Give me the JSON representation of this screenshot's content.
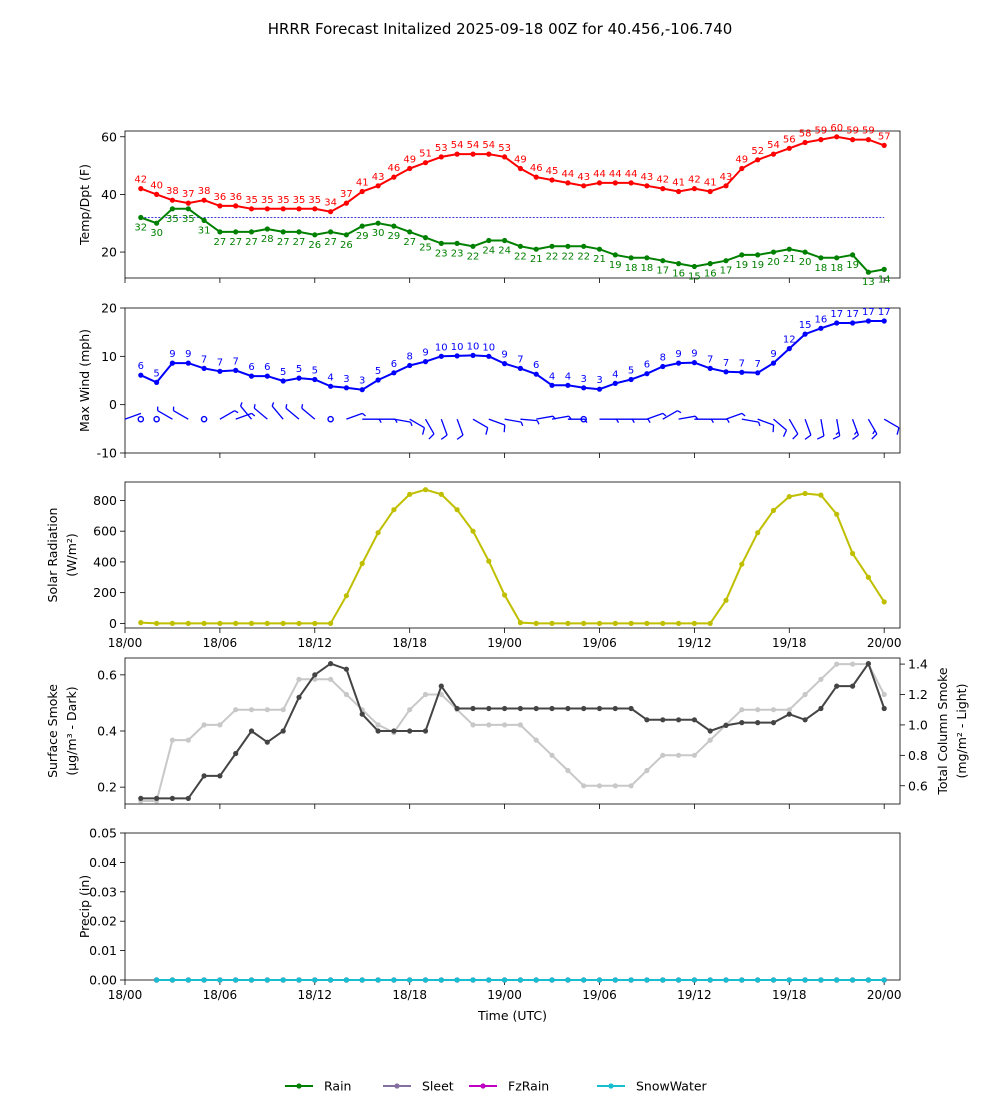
{
  "title": "HRRR Forecast Initalized 2025-09-18 00Z for 40.456,-106.740",
  "colors": {
    "temp": "#ff0000",
    "dewpoint": "#008000",
    "freezing_line": "#0000cc",
    "wind": "#0000ff",
    "solar": "#bfbf00",
    "surface_smoke": "#444444",
    "column_smoke": "#c8c8c8",
    "rain": "#008000",
    "sleet": "#8470a0",
    "fzrain": "#c000c0",
    "snowwater": "#17becf"
  },
  "x_axis": {
    "label": "Time (UTC)",
    "range_hours": [
      0,
      49
    ],
    "tick_hours": [
      0,
      6,
      12,
      18,
      24,
      30,
      36,
      42,
      48
    ],
    "tick_labels": [
      "18/00",
      "18/06",
      "18/12",
      "18/18",
      "19/00",
      "19/06",
      "19/12",
      "19/18",
      "20/00"
    ]
  },
  "chart_data": [
    {
      "type": "line",
      "ylabel": "Temp/Dpt (F)",
      "ylim": [
        11,
        62
      ],
      "yticks": [
        20,
        40,
        60
      ],
      "x_hours": [
        1,
        2,
        3,
        4,
        5,
        6,
        7,
        8,
        9,
        10,
        11,
        12,
        13,
        14,
        15,
        16,
        17,
        18,
        19,
        20,
        21,
        22,
        23,
        24,
        25,
        26,
        27,
        28,
        29,
        30,
        31,
        32,
        33,
        34,
        35,
        36,
        37,
        38,
        39,
        40,
        41,
        42,
        43,
        44,
        45,
        46,
        47,
        48
      ],
      "series": [
        {
          "key": "temp",
          "color_key": "temp",
          "label_dy": -6,
          "values": [
            42,
            40,
            38,
            37,
            38,
            36,
            36,
            35,
            35,
            35,
            35,
            35,
            34,
            37,
            41,
            43,
            46,
            49,
            51,
            53,
            54,
            54,
            54,
            53,
            49,
            46,
            45,
            44,
            43,
            44,
            44,
            44,
            43,
            42,
            41,
            42,
            41,
            43,
            49,
            52,
            54,
            56,
            58,
            59,
            60,
            59,
            59,
            57
          ]
        },
        {
          "key": "dewpoint",
          "color_key": "dewpoint",
          "label_dy": 13,
          "values": [
            32,
            30,
            35,
            35,
            31,
            27,
            27,
            27,
            28,
            27,
            27,
            26,
            27,
            26,
            29,
            30,
            29,
            27,
            25,
            23,
            23,
            22,
            24,
            24,
            22,
            21,
            22,
            22,
            22,
            21,
            19,
            18,
            18,
            17,
            16,
            15,
            16,
            17,
            19,
            19,
            20,
            21,
            20,
            18,
            18,
            19,
            13,
            14
          ]
        }
      ],
      "reference_line_y": 32
    },
    {
      "type": "line",
      "ylabel": "Max Wind (mph)",
      "ylim": [
        -10,
        20
      ],
      "yticks": [
        -10,
        0,
        10,
        20
      ],
      "x_hours": [
        1,
        2,
        3,
        4,
        5,
        6,
        7,
        8,
        9,
        10,
        11,
        12,
        13,
        14,
        15,
        16,
        17,
        18,
        19,
        20,
        21,
        22,
        23,
        24,
        25,
        26,
        27,
        28,
        29,
        30,
        31,
        32,
        33,
        34,
        35,
        36,
        37,
        38,
        39,
        40,
        41,
        42,
        43,
        44,
        45,
        46,
        47,
        48
      ],
      "series": [
        {
          "key": "wind",
          "color_key": "wind",
          "label_dy": -6,
          "values": [
            6,
            5,
            9,
            9,
            7,
            7,
            7,
            6,
            6,
            5,
            5,
            5,
            4,
            3,
            3,
            5,
            6,
            8,
            9,
            10,
            10,
            10,
            10,
            9,
            7,
            6,
            4,
            4,
            3,
            3,
            4,
            5,
            6,
            8,
            9,
            9,
            7,
            7,
            7,
            7,
            9,
            12,
            15,
            16,
            17,
            17,
            17,
            17
          ],
          "plot_values": [
            6.1,
            4.6,
            8.6,
            8.6,
            7.5,
            6.9,
            7.1,
            5.9,
            5.9,
            4.9,
            5.5,
            5.2,
            3.8,
            3.5,
            3.1,
            5.1,
            6.6,
            8.1,
            8.9,
            10.0,
            10.1,
            10.2,
            10.0,
            8.5,
            7.5,
            6.3,
            4.0,
            4.0,
            3.5,
            3.2,
            4.4,
            5.2,
            6.4,
            7.9,
            8.6,
            8.7,
            7.5,
            6.8,
            6.7,
            6.6,
            8.6,
            11.6,
            14.6,
            15.8,
            16.9,
            16.9,
            17.3,
            17.3
          ]
        }
      ],
      "barbs": {
        "y": -3,
        "hours": [
          0,
          1,
          2,
          3,
          4,
          5,
          6,
          7,
          8,
          9,
          10,
          11,
          12,
          13,
          14,
          15,
          16,
          17,
          18,
          19,
          20,
          21,
          22,
          23,
          24,
          25,
          26,
          27,
          28,
          29,
          30,
          31,
          32,
          33,
          34,
          35,
          36,
          37,
          38,
          39,
          40,
          41,
          42,
          43,
          44,
          45,
          46,
          47,
          48
        ],
        "direction_deg": [
          70,
          0,
          0,
          300,
          300,
          0,
          60,
          70,
          320,
          310,
          320,
          310,
          310,
          0,
          70,
          90,
          90,
          100,
          120,
          150,
          160,
          160,
          120,
          110,
          100,
          95,
          80,
          80,
          90,
          0,
          90,
          90,
          90,
          70,
          60,
          80,
          90,
          90,
          70,
          100,
          110,
          130,
          150,
          160,
          170,
          170,
          160,
          150,
          120
        ],
        "speed_kt": [
          3,
          0,
          0,
          5,
          5,
          0,
          5,
          5,
          5,
          5,
          5,
          5,
          5,
          0,
          5,
          5,
          5,
          5,
          10,
          10,
          10,
          10,
          10,
          10,
          5,
          5,
          5,
          5,
          5,
          0,
          5,
          5,
          5,
          5,
          5,
          5,
          5,
          5,
          5,
          5,
          10,
          10,
          10,
          10,
          10,
          15,
          15,
          15,
          10
        ]
      }
    },
    {
      "type": "line",
      "ylabel": "Solar Radiation",
      "ylabel_unit": "(W/m²)",
      "ylim": [
        -30,
        920
      ],
      "yticks": [
        0,
        200,
        400,
        600,
        800
      ],
      "x_hours": [
        1,
        2,
        3,
        4,
        5,
        6,
        7,
        8,
        9,
        10,
        11,
        12,
        13,
        14,
        15,
        16,
        17,
        18,
        19,
        20,
        21,
        22,
        23,
        24,
        25,
        26,
        27,
        28,
        29,
        30,
        31,
        32,
        33,
        34,
        35,
        36,
        37,
        38,
        39,
        40,
        41,
        42,
        43,
        44,
        45,
        46,
        47,
        48
      ],
      "series": [
        {
          "key": "solar",
          "color_key": "solar",
          "values": [
            5,
            0,
            0,
            0,
            0,
            0,
            0,
            0,
            0,
            0,
            0,
            0,
            0,
            180,
            390,
            590,
            740,
            840,
            870,
            840,
            740,
            600,
            405,
            185,
            5,
            0,
            0,
            0,
            0,
            0,
            0,
            0,
            0,
            0,
            0,
            0,
            0,
            150,
            385,
            590,
            735,
            825,
            845,
            835,
            710,
            455,
            300,
            140
          ]
        }
      ]
    },
    {
      "type": "line",
      "ylabel": "Surface Smoke",
      "ylabel_unit": "(μg/m³ - Dark)",
      "ylim": [
        0.14,
        0.66
      ],
      "yticks": [
        0.2,
        0.4,
        0.6
      ],
      "y2label": "Total Column Smoke",
      "y2label_unit": "(mg/m² - Light)",
      "y2lim": [
        0.48,
        1.44
      ],
      "y2ticks": [
        0.6,
        0.8,
        1.0,
        1.2,
        1.4
      ],
      "x_hours": [
        1,
        2,
        3,
        4,
        5,
        6,
        7,
        8,
        9,
        10,
        11,
        12,
        13,
        14,
        15,
        16,
        17,
        18,
        19,
        20,
        21,
        22,
        23,
        24,
        25,
        26,
        27,
        28,
        29,
        30,
        31,
        32,
        33,
        34,
        35,
        36,
        37,
        38,
        39,
        40,
        41,
        42,
        43,
        44,
        45,
        46,
        47,
        48
      ],
      "series": [
        {
          "key": "column_smoke",
          "color_key": "column_smoke",
          "axis": "right",
          "values": [
            0.5,
            0.5,
            0.9,
            0.9,
            1.0,
            1.0,
            1.1,
            1.1,
            1.1,
            1.1,
            1.3,
            1.3,
            1.3,
            1.2,
            1.1,
            1.0,
            0.95,
            1.1,
            1.2,
            1.2,
            1.1,
            1.0,
            1.0,
            1.0,
            1.0,
            0.9,
            0.8,
            0.7,
            0.6,
            0.6,
            0.6,
            0.6,
            0.7,
            0.8,
            0.8,
            0.8,
            0.9,
            1.0,
            1.1,
            1.1,
            1.1,
            1.1,
            1.2,
            1.3,
            1.4,
            1.4,
            1.4,
            1.2
          ]
        },
        {
          "key": "surface_smoke",
          "color_key": "surface_smoke",
          "axis": "left",
          "values": [
            0.16,
            0.16,
            0.16,
            0.16,
            0.24,
            0.24,
            0.32,
            0.4,
            0.36,
            0.4,
            0.52,
            0.6,
            0.64,
            0.62,
            0.46,
            0.4,
            0.4,
            0.4,
            0.4,
            0.56,
            0.48,
            0.48,
            0.48,
            0.48,
            0.48,
            0.48,
            0.48,
            0.48,
            0.48,
            0.48,
            0.48,
            0.48,
            0.44,
            0.44,
            0.44,
            0.44,
            0.4,
            0.42,
            0.43,
            0.43,
            0.43,
            0.46,
            0.44,
            0.48,
            0.56,
            0.56,
            0.64,
            0.48
          ]
        }
      ]
    },
    {
      "type": "line",
      "ylabel": "Precip (in)",
      "ylim": [
        0,
        0.05
      ],
      "yticks": [
        0,
        0.01,
        0.02,
        0.03,
        0.04,
        0.05
      ],
      "ytick_labels": [
        "0.00",
        "0.01",
        "0.02",
        "0.03",
        "0.04",
        "0.05"
      ],
      "x_hours": [
        2,
        3,
        4,
        5,
        6,
        7,
        8,
        9,
        10,
        11,
        12,
        13,
        14,
        15,
        16,
        17,
        18,
        19,
        20,
        21,
        22,
        23,
        24,
        25,
        26,
        27,
        28,
        29,
        30,
        31,
        32,
        33,
        34,
        35,
        36,
        37,
        38,
        39,
        40,
        41,
        42,
        43,
        44,
        45,
        46,
        47,
        48
      ],
      "series": [
        {
          "name": "Rain",
          "key": "rain",
          "color_key": "rain",
          "values": "zeros"
        },
        {
          "name": "Sleet",
          "key": "sleet",
          "color_key": "sleet",
          "values": "zeros"
        },
        {
          "name": "FzRain",
          "key": "fzrain",
          "color_key": "fzrain",
          "values": "zeros"
        },
        {
          "name": "SnowWater",
          "key": "snowwater",
          "color_key": "snowwater",
          "values": "zeros"
        }
      ],
      "legend": {
        "placement": "bottom-center",
        "entries": [
          "Rain",
          "Sleet",
          "FzRain",
          "SnowWater"
        ]
      }
    }
  ]
}
